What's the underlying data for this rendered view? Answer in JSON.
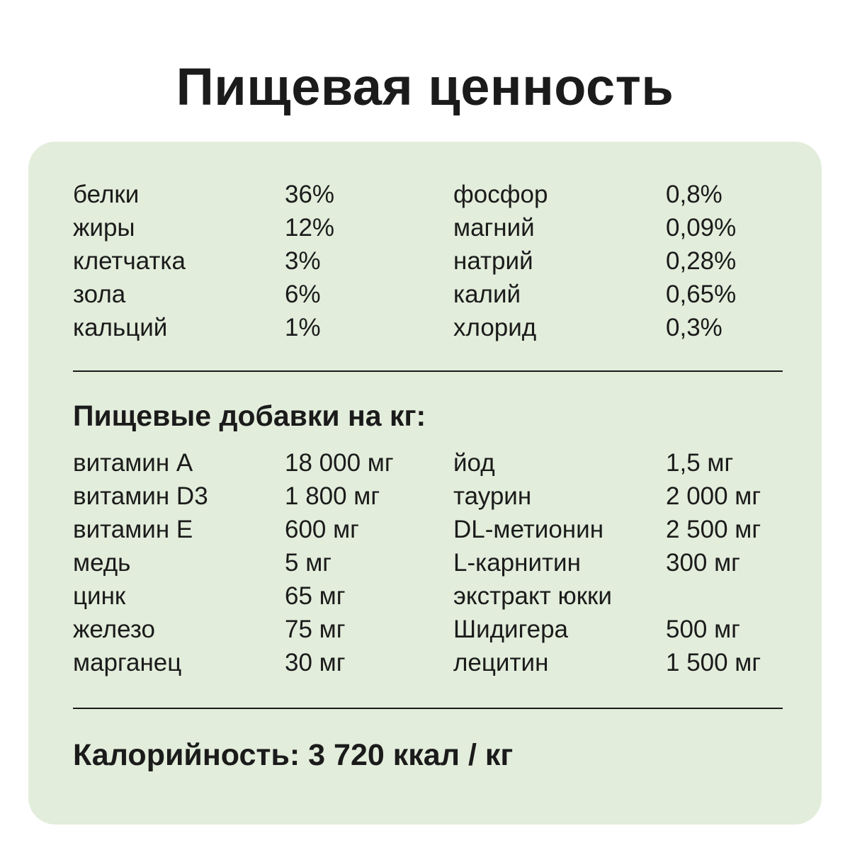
{
  "title": "Пищевая ценность",
  "nutrients": [
    {
      "name": "белки",
      "value": "36%",
      "name2": "фосфор",
      "value2": "0,8%"
    },
    {
      "name": "жиры",
      "value": "12%",
      "name2": "магний",
      "value2": "0,09%"
    },
    {
      "name": "клетчатка",
      "value": "3%",
      "name2": "натрий",
      "value2": "0,28%"
    },
    {
      "name": "зола",
      "value": "6%",
      "name2": "калий",
      "value2": "0,65%"
    },
    {
      "name": "кальций",
      "value": "1%",
      "name2": "хлорид",
      "value2": "0,3%"
    }
  ],
  "additives_heading": "Пищевые добавки на кг:",
  "additives": [
    {
      "name": "витамин А",
      "value": "18 000 мг",
      "name2": "йод",
      "value2": "1,5 мг"
    },
    {
      "name": "витамин D3",
      "value": "1 800 мг",
      "name2": "таурин",
      "value2": "2 000 мг"
    },
    {
      "name": "витамин Е",
      "value": "600 мг",
      "name2": "DL-метионин",
      "value2": "2 500 мг"
    },
    {
      "name": "медь",
      "value": "5 мг",
      "name2": "L-карнитин",
      "value2": "300 мг"
    },
    {
      "name": "цинк",
      "value": "65 мг",
      "name2": "экстракт юкки",
      "value2": ""
    },
    {
      "name": "железо",
      "value": "75 мг",
      "name2": "Шидигера",
      "value2": "500 мг"
    },
    {
      "name": "марганец",
      "value": "30 мг",
      "name2": "лецитин",
      "value2": "1 500 мг"
    }
  ],
  "calories": "Калорийность: 3 720 ккал / кг",
  "colors": {
    "panel_background": "#e2eddb",
    "text": "#1b1b1b"
  }
}
